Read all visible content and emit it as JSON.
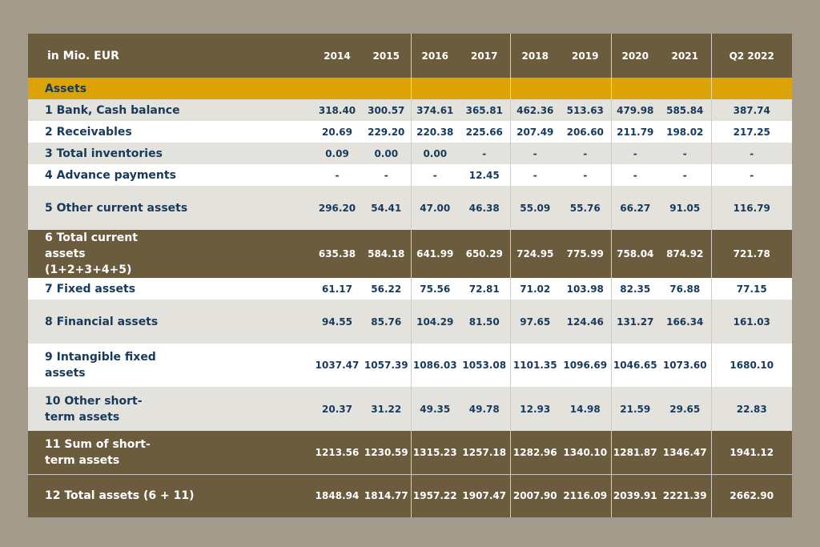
{
  "table": {
    "unit_label": "in Mio. EUR",
    "columns": [
      "2014",
      "2015",
      "2016",
      "2017",
      "2018",
      "2019",
      "2020",
      "2021",
      "Q2 2022"
    ],
    "section_label": "Assets",
    "rows": [
      {
        "label": "1 Bank, Cash balance",
        "values": [
          "318.40",
          "300.57",
          "374.61",
          "365.81",
          "462.36",
          "513.63",
          "479.98",
          "585.84",
          "387.74"
        ]
      },
      {
        "label": "2 Receivables",
        "values": [
          "20.69",
          "229.20",
          "220.38",
          "225.66",
          "207.49",
          "206.60",
          "211.79",
          "198.02",
          "217.25"
        ]
      },
      {
        "label": "3 Total inventories",
        "values": [
          "0.09",
          "0.00",
          "0.00",
          "-",
          "-",
          "-",
          "-",
          "-",
          "-"
        ]
      },
      {
        "label": "4 Advance payments",
        "values": [
          "-",
          "-",
          "-",
          "12.45",
          "-",
          "-",
          "-",
          "-",
          "-"
        ]
      },
      {
        "label": "5 Other current assets",
        "values": [
          "296.20",
          "54.41",
          "47.00",
          "46.38",
          "55.09",
          "55.76",
          "66.27",
          "91.05",
          "116.79"
        ]
      },
      {
        "label": "6 Total current assets (1+2+3+4+5)",
        "values": [
          "635.38",
          "584.18",
          "641.99",
          "650.29",
          "724.95",
          "775.99",
          "758.04",
          "874.92",
          "721.78"
        ]
      },
      {
        "label": "7 Fixed assets",
        "values": [
          "61.17",
          "56.22",
          "75.56",
          "72.81",
          "71.02",
          "103.98",
          "82.35",
          "76.88",
          "77.15"
        ]
      },
      {
        "label": "8 Financial assets",
        "values": [
          "94.55",
          "85.76",
          "104.29",
          "81.50",
          "97.65",
          "124.46",
          "131.27",
          "166.34",
          "161.03"
        ]
      },
      {
        "label": "9 Intangible fixed assets",
        "values": [
          "1037.47",
          "1057.39",
          "1086.03",
          "1053.08",
          "1101.35",
          "1096.69",
          "1046.65",
          "1073.60",
          "1680.10"
        ]
      },
      {
        "label": "10 Other short-term assets",
        "values": [
          "20.37",
          "31.22",
          "49.35",
          "49.78",
          "12.93",
          "14.98",
          "21.59",
          "29.65",
          "22.83"
        ]
      },
      {
        "label": "11 Sum of short-term assets",
        "values": [
          "1213.56",
          "1230.59",
          "1315.23",
          "1257.18",
          "1282.96",
          "1340.10",
          "1281.87",
          "1346.47",
          "1941.12"
        ]
      },
      {
        "label": "12 Total assets (6 + 11)",
        "values": [
          "1848.94",
          "1814.77",
          "1957.22",
          "1907.47",
          "2007.90",
          "2116.09",
          "2039.91",
          "2221.39",
          "2662.90"
        ]
      }
    ]
  },
  "colors": {
    "frame_bg": "#a39c8c",
    "dark_row": "#6b5c3e",
    "section_row": "#dba404",
    "light_row": "#e3e2dd",
    "white_row": "#ffffff",
    "value_text": "#173a5c"
  }
}
